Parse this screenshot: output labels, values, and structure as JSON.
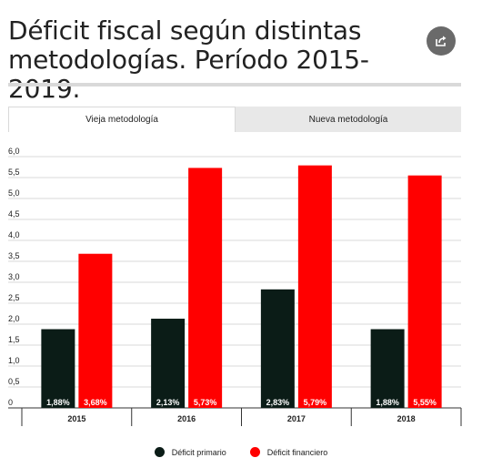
{
  "header": {
    "title": "Déficit fiscal según distintas metodologías. Período 2015-2019."
  },
  "share_icon": "share-icon",
  "tabs": [
    {
      "label": "Vieja metodología",
      "active": true
    },
    {
      "label": "Nueva metodología",
      "active": false
    }
  ],
  "colors": {
    "primary": "#0b1c17",
    "financial": "#ff0000",
    "grid": "#d9d9d9"
  },
  "chart_data": {
    "type": "bar",
    "categories": [
      "2015",
      "2016",
      "2017",
      "2018"
    ],
    "series": [
      {
        "name": "Déficit primario",
        "values": [
          1.88,
          2.13,
          2.83,
          1.88
        ],
        "labels": [
          "1,88%",
          "2,13%",
          "2,83%",
          "1,88%"
        ]
      },
      {
        "name": "Déficit financiero",
        "values": [
          3.68,
          5.73,
          5.79,
          5.55
        ],
        "labels": [
          "3,68%",
          "5,73%",
          "5,79%",
          "5,55%"
        ]
      }
    ],
    "yticks": [
      "0",
      "0,5",
      "1,0",
      "1,5",
      "2,0",
      "2,5",
      "3,0",
      "3,5",
      "4,0",
      "4,5",
      "5,0",
      "5,5",
      "6,0"
    ],
    "ylim": [
      0,
      6
    ],
    "grid": true,
    "legend_position": "bottom-center"
  }
}
